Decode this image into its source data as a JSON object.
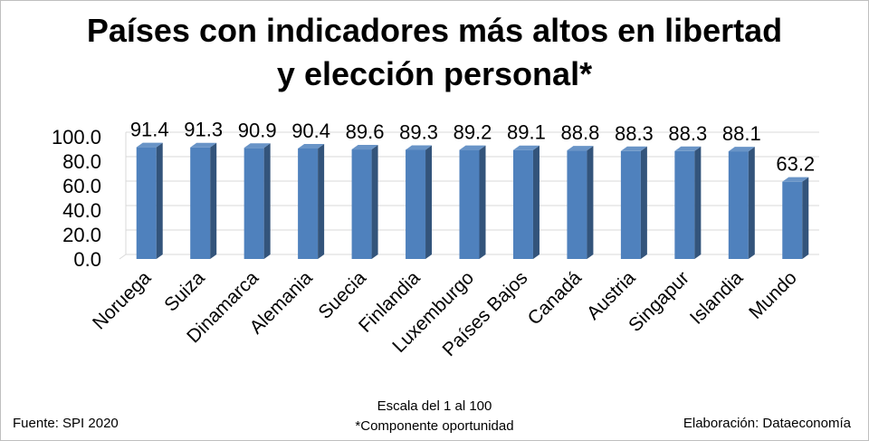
{
  "chart_data": {
    "type": "bar",
    "title_line1": "Países con indicadores más altos en libertad",
    "title_line2": "y elección personal*",
    "categories": [
      "Noruega",
      "Suiza",
      "Dinamarca",
      "Alemania",
      "Suecia",
      "Finlandia",
      "Luxemburgo",
      "Países Bajos",
      "Canadá",
      "Austria",
      "Singapur",
      "Islandia",
      "Mundo"
    ],
    "values": [
      91.4,
      91.3,
      90.9,
      90.4,
      89.6,
      89.3,
      89.2,
      89.1,
      88.8,
      88.3,
      88.3,
      88.1,
      63.2
    ],
    "value_labels": [
      "91.4",
      "91.3",
      "90.9",
      "90.4",
      "89.6",
      "89.3",
      "89.2",
      "89.1",
      "88.8",
      "88.3",
      "88.3",
      "88.1",
      "63.2"
    ],
    "y_ticks": [
      "0.0",
      "20.0",
      "40.0",
      "60.0",
      "80.0",
      "100.0"
    ],
    "ylim": [
      0,
      100
    ],
    "grid": true,
    "bar_color": "#4f81bd"
  },
  "notes": {
    "scale": "Escala del 1 al 100",
    "component": "*Componente oportunidad",
    "source": "Fuente: SPI 2020",
    "credit": "Elaboración: Dataeconomía"
  }
}
